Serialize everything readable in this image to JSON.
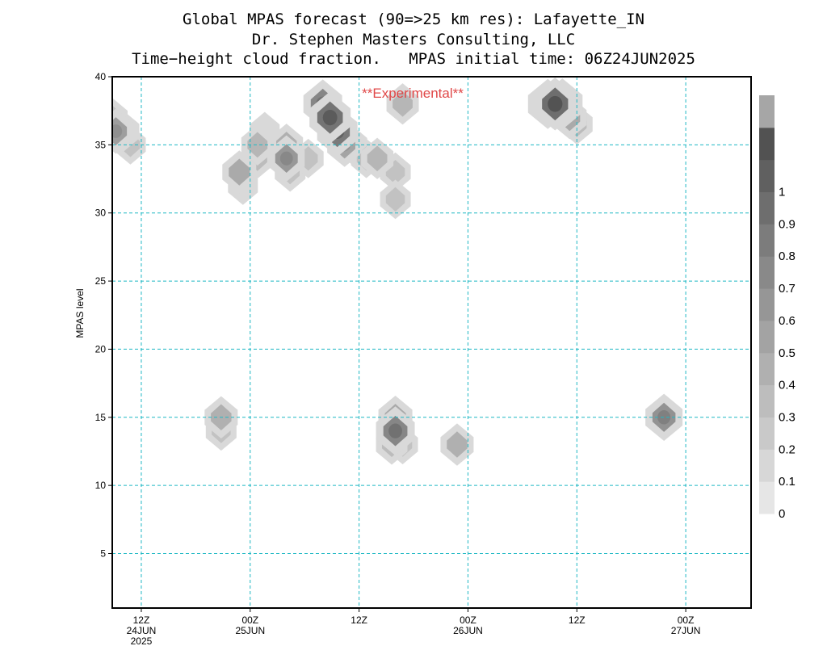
{
  "chart_data": {
    "type": "heatmap",
    "title": "Global MPAS forecast (90=>25 km res): Lafayette_IN",
    "subtitle": "Dr. Stephen Masters Consulting, LLC",
    "subtitle2": "Time−height cloud fraction.   MPAS initial time: 06Z24JUN2025",
    "annotation": "**Experimental**",
    "annotation_color": "#e04848",
    "xlabel": "",
    "ylabel": "MPAS level",
    "x_unit": "forecast hour",
    "xlim": [
      2,
      90
    ],
    "ylim": [
      1,
      40
    ],
    "grid": true,
    "grid_color": "#1fb8c4",
    "yticks": [
      5,
      10,
      15,
      20,
      25,
      30,
      35,
      40
    ],
    "xticks": [
      {
        "x": 6,
        "lines": [
          "12Z",
          "24JUN",
          "2025"
        ]
      },
      {
        "x": 21,
        "lines": [
          "00Z",
          "25JUN"
        ]
      },
      {
        "x": 36,
        "lines": [
          "12Z"
        ]
      },
      {
        "x": 51,
        "lines": [
          "00Z",
          "26JUN"
        ]
      },
      {
        "x": 66,
        "lines": [
          "12Z"
        ]
      },
      {
        "x": 81,
        "lines": [
          "00Z",
          "27JUN"
        ]
      }
    ],
    "colorbar": {
      "labels": [
        "0",
        "0.1",
        "0.2",
        "0.3",
        "0.4",
        "0.5",
        "0.6",
        "0.7",
        "0.8",
        "0.9",
        "1"
      ],
      "colors": [
        "#e6e6e6",
        "#d7d7d7",
        "#c9c9c9",
        "#bdbdbd",
        "#b0b0b0",
        "#a3a3a3",
        "#969696",
        "#898989",
        "#7c7c7c",
        "#6e6e6e",
        "#606060",
        "#525252",
        "#a6a6a6"
      ]
    },
    "cloud_cells": [
      {
        "x": 2.5,
        "y": 36,
        "value": 0.5
      },
      {
        "x": 3.5,
        "y": 36,
        "value": 0.3
      },
      {
        "x": 2,
        "y": 37,
        "value": 0.2
      },
      {
        "x": 4.5,
        "y": 35,
        "value": 0.2
      },
      {
        "x": 19.5,
        "y": 33,
        "value": 0.4
      },
      {
        "x": 20,
        "y": 32,
        "value": 0.15
      },
      {
        "x": 22,
        "y": 35,
        "value": 0.3
      },
      {
        "x": 22,
        "y": 34,
        "value": 0.25
      },
      {
        "x": 23,
        "y": 36,
        "value": 0.15
      },
      {
        "x": 26,
        "y": 34,
        "value": 0.55
      },
      {
        "x": 26,
        "y": 35,
        "value": 0.35
      },
      {
        "x": 26.5,
        "y": 33,
        "value": 0.2
      },
      {
        "x": 29,
        "y": 34,
        "value": 0.2
      },
      {
        "x": 31,
        "y": 38,
        "value": 0.7
      },
      {
        "x": 32,
        "y": 37,
        "value": 0.85
      },
      {
        "x": 33,
        "y": 36,
        "value": 0.8
      },
      {
        "x": 34,
        "y": 35,
        "value": 0.45
      },
      {
        "x": 35,
        "y": 35,
        "value": 0.2
      },
      {
        "x": 37,
        "y": 34,
        "value": 0.2
      },
      {
        "x": 38.5,
        "y": 34,
        "value": 0.3
      },
      {
        "x": 41,
        "y": 33,
        "value": 0.2
      },
      {
        "x": 41,
        "y": 31,
        "value": 0.2
      },
      {
        "x": 42,
        "y": 38,
        "value": 0.3
      },
      {
        "x": 62,
        "y": 38,
        "value": 0.75
      },
      {
        "x": 63,
        "y": 38,
        "value": 0.9
      },
      {
        "x": 64,
        "y": 38,
        "value": 0.8
      },
      {
        "x": 65,
        "y": 37,
        "value": 0.4
      },
      {
        "x": 66,
        "y": 36.5,
        "value": 0.25
      },
      {
        "x": 17,
        "y": 15,
        "value": 0.35
      },
      {
        "x": 17,
        "y": 14,
        "value": 0.2
      },
      {
        "x": 41,
        "y": 14,
        "value": 0.7
      },
      {
        "x": 41,
        "y": 15,
        "value": 0.4
      },
      {
        "x": 40.5,
        "y": 13,
        "value": 0.25
      },
      {
        "x": 42,
        "y": 13,
        "value": 0.2
      },
      {
        "x": 49.5,
        "y": 13,
        "value": 0.35
      },
      {
        "x": 78,
        "y": 15,
        "value": 0.6
      }
    ]
  }
}
